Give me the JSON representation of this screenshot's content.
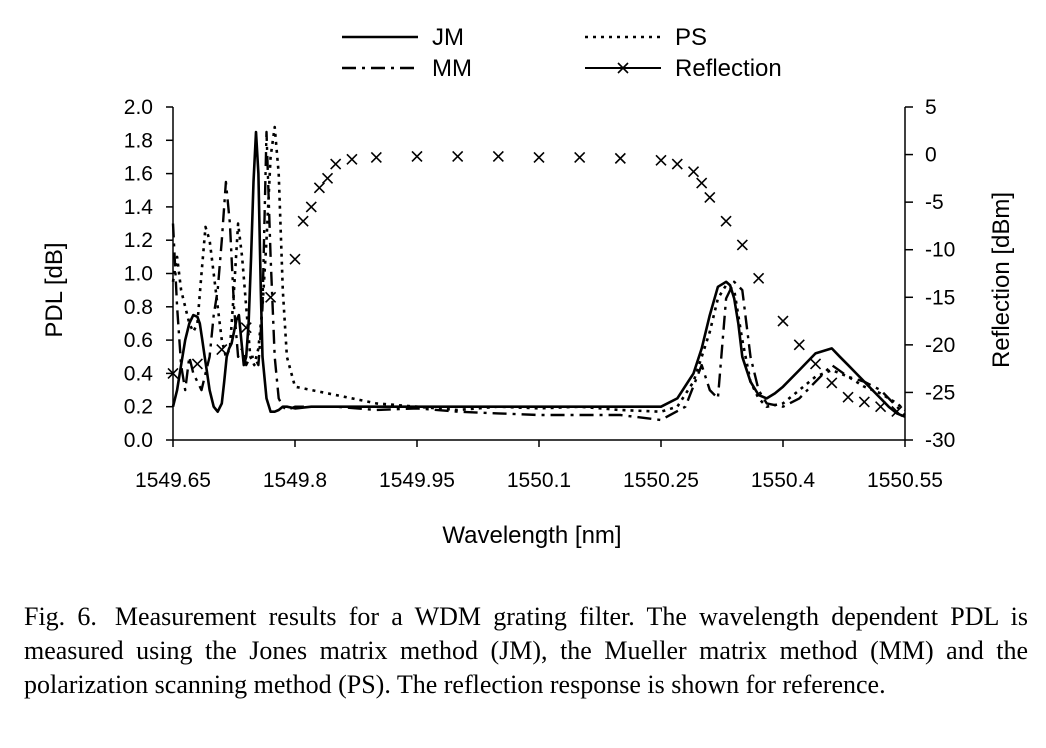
{
  "chart_data": {
    "type": "line",
    "xlabel": "Wavelength [nm]",
    "ylabel": "PDL [dB]",
    "y2label": "Reflection [dBm]",
    "xlim": [
      1549.65,
      1550.55
    ],
    "ylim": [
      0,
      2.0
    ],
    "y2lim": [
      -30,
      5
    ],
    "x_ticks": [
      "1549.65",
      "1549.8",
      "1549.95",
      "1550.1",
      "1550.25",
      "1550.4",
      "1550.55"
    ],
    "y_ticks": [
      "0.0",
      "0.2",
      "0.4",
      "0.6",
      "0.8",
      "1.0",
      "1.2",
      "1.4",
      "1.6",
      "1.8",
      "2.0"
    ],
    "y2_ticks": [
      "5",
      "0",
      "-5",
      "-10",
      "-15",
      "-20",
      "-25",
      "-30"
    ],
    "legend_position": "top",
    "grid": false,
    "series": [
      {
        "name": "JM",
        "axis": "left",
        "style": "solid",
        "x": [
          1549.65,
          1549.655,
          1549.66,
          1549.665,
          1549.67,
          1549.675,
          1549.68,
          1549.683,
          1549.686,
          1549.689,
          1549.692,
          1549.695,
          1549.7,
          1549.705,
          1549.71,
          1549.713,
          1549.716,
          1549.719,
          1549.722,
          1549.725,
          1549.728,
          1549.731,
          1549.734,
          1549.737,
          1549.74,
          1549.743,
          1549.746,
          1549.749,
          1549.752,
          1549.755,
          1549.758,
          1549.76,
          1549.765,
          1549.77,
          1549.775,
          1549.78,
          1549.785,
          1549.79,
          1549.8,
          1549.82,
          1549.85,
          1549.9,
          1549.95,
          1550.0,
          1550.05,
          1550.1,
          1550.15,
          1550.2,
          1550.25,
          1550.27,
          1550.29,
          1550.3,
          1550.31,
          1550.32,
          1550.33,
          1550.335,
          1550.34,
          1550.345,
          1550.35,
          1550.36,
          1550.37,
          1550.38,
          1550.39,
          1550.4,
          1550.42,
          1550.44,
          1550.46,
          1550.47,
          1550.48,
          1550.49,
          1550.5,
          1550.51,
          1550.52,
          1550.53,
          1550.54,
          1550.55
        ],
        "values": [
          0.2,
          0.3,
          0.45,
          0.6,
          0.7,
          0.75,
          0.74,
          0.7,
          0.6,
          0.5,
          0.4,
          0.3,
          0.2,
          0.17,
          0.22,
          0.35,
          0.5,
          0.55,
          0.58,
          0.65,
          0.72,
          0.75,
          0.6,
          0.45,
          0.5,
          0.7,
          1.1,
          1.55,
          1.85,
          1.6,
          0.9,
          0.5,
          0.25,
          0.17,
          0.17,
          0.18,
          0.2,
          0.2,
          0.19,
          0.2,
          0.2,
          0.2,
          0.2,
          0.2,
          0.2,
          0.2,
          0.2,
          0.2,
          0.2,
          0.25,
          0.4,
          0.55,
          0.75,
          0.92,
          0.95,
          0.93,
          0.85,
          0.7,
          0.5,
          0.35,
          0.27,
          0.25,
          0.28,
          0.32,
          0.42,
          0.52,
          0.55,
          0.5,
          0.45,
          0.4,
          0.35,
          0.3,
          0.25,
          0.2,
          0.16,
          0.14
        ]
      },
      {
        "name": "PS",
        "axis": "left",
        "style": "dotted",
        "x": [
          1549.65,
          1549.655,
          1549.66,
          1549.665,
          1549.67,
          1549.675,
          1549.68,
          1549.685,
          1549.69,
          1549.695,
          1549.7,
          1549.705,
          1549.71,
          1549.715,
          1549.72,
          1549.725,
          1549.73,
          1549.735,
          1549.74,
          1549.745,
          1549.75,
          1549.755,
          1549.76,
          1549.765,
          1549.77,
          1549.775,
          1549.78,
          1549.785,
          1549.79,
          1549.8,
          1549.85,
          1549.9,
          1549.95,
          1550.0,
          1550.05,
          1550.1,
          1550.15,
          1550.2,
          1550.25,
          1550.27,
          1550.29,
          1550.3,
          1550.31,
          1550.32,
          1550.33,
          1550.34,
          1550.35,
          1550.36,
          1550.37,
          1550.38,
          1550.4,
          1550.42,
          1550.44,
          1550.46,
          1550.48,
          1550.5,
          1550.52,
          1550.54,
          1550.55
        ],
        "values": [
          0.95,
          1.1,
          0.9,
          0.8,
          0.7,
          0.65,
          0.7,
          1.0,
          1.28,
          1.2,
          1.0,
          0.8,
          0.6,
          0.5,
          0.55,
          0.9,
          1.3,
          1.1,
          0.8,
          0.5,
          0.45,
          0.55,
          0.8,
          1.2,
          1.7,
          1.88,
          1.6,
          0.9,
          0.5,
          0.32,
          0.27,
          0.22,
          0.2,
          0.18,
          0.2,
          0.19,
          0.2,
          0.18,
          0.17,
          0.2,
          0.35,
          0.5,
          0.65,
          0.85,
          0.93,
          0.9,
          0.6,
          0.35,
          0.25,
          0.2,
          0.22,
          0.3,
          0.38,
          0.42,
          0.38,
          0.32,
          0.28,
          0.22,
          0.18
        ]
      },
      {
        "name": "MM",
        "axis": "left",
        "style": "dashdot",
        "x": [
          1549.65,
          1549.655,
          1549.66,
          1549.665,
          1549.67,
          1549.675,
          1549.68,
          1549.685,
          1549.69,
          1549.695,
          1549.7,
          1549.705,
          1549.71,
          1549.715,
          1549.72,
          1549.725,
          1549.73,
          1549.735,
          1549.74,
          1549.745,
          1549.75,
          1549.755,
          1549.76,
          1549.765,
          1549.77,
          1549.775,
          1549.78,
          1549.785,
          1549.79,
          1549.8,
          1549.85,
          1549.9,
          1549.95,
          1550.0,
          1550.05,
          1550.1,
          1550.15,
          1550.2,
          1550.25,
          1550.28,
          1550.3,
          1550.31,
          1550.32,
          1550.33,
          1550.34,
          1550.35,
          1550.36,
          1550.37,
          1550.38,
          1550.4,
          1550.42,
          1550.44,
          1550.46,
          1550.48,
          1550.5,
          1550.52,
          1550.54,
          1550.55
        ],
        "values": [
          1.3,
          0.8,
          0.45,
          0.3,
          0.5,
          0.4,
          0.35,
          0.3,
          0.4,
          0.5,
          0.75,
          0.9,
          1.2,
          1.55,
          1.3,
          0.8,
          0.5,
          0.55,
          0.45,
          0.5,
          0.5,
          0.45,
          0.8,
          1.85,
          1.1,
          0.5,
          0.25,
          0.2,
          0.18,
          0.2,
          0.2,
          0.18,
          0.19,
          0.17,
          0.16,
          0.15,
          0.15,
          0.15,
          0.12,
          0.2,
          0.45,
          0.3,
          0.25,
          0.85,
          0.95,
          0.9,
          0.5,
          0.3,
          0.22,
          0.2,
          0.25,
          0.35,
          0.45,
          0.38,
          0.35,
          0.3,
          0.2,
          0.15
        ]
      },
      {
        "name": "Reflection",
        "axis": "right",
        "style": "marker-x",
        "x": [
          1549.65,
          1549.68,
          1549.71,
          1549.74,
          1549.77,
          1549.8,
          1549.81,
          1549.82,
          1549.83,
          1549.84,
          1549.85,
          1549.87,
          1549.9,
          1549.95,
          1550.0,
          1550.05,
          1550.1,
          1550.15,
          1550.2,
          1550.25,
          1550.27,
          1550.29,
          1550.3,
          1550.31,
          1550.33,
          1550.35,
          1550.37,
          1550.4,
          1550.42,
          1550.44,
          1550.46,
          1550.48,
          1550.5,
          1550.52,
          1550.54
        ],
        "values": [
          -23,
          -22,
          -20.5,
          -18.2,
          -15,
          -11,
          -7,
          -5.5,
          -3.5,
          -2.5,
          -1,
          -0.5,
          -0.3,
          -0.2,
          -0.2,
          -0.2,
          -0.3,
          -0.3,
          -0.4,
          -0.6,
          -1,
          -1.8,
          -3,
          -4.5,
          -7,
          -9.5,
          -13,
          -17.5,
          -20,
          -22,
          -24,
          -25.5,
          -26,
          -26.5,
          -27
        ]
      }
    ]
  },
  "legend": [
    {
      "label": "JM",
      "style": "solid"
    },
    {
      "label": "PS",
      "style": "dotted"
    },
    {
      "label": "MM",
      "style": "dashdot"
    },
    {
      "label": "Reflection",
      "style": "marker-x"
    }
  ],
  "caption": {
    "number": "Fig. 6.",
    "text": "Measurement results for a WDM grating filter. The wavelength dependent PDL is measured using the Jones matrix method (JM), the Mueller matrix method (MM) and the polarization scanning method (PS). The reflection response is shown for reference."
  }
}
